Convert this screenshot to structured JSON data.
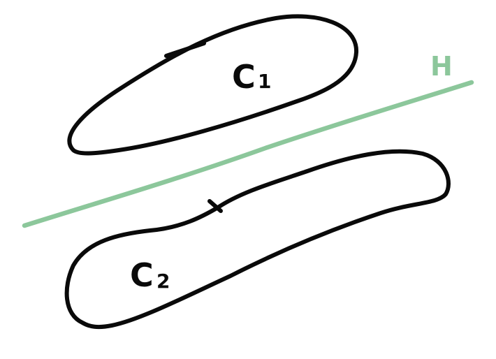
{
  "diagram": {
    "labels": {
      "c1_main": "C",
      "c1_sub": "1",
      "c2_main": "C",
      "c2_sub": "2",
      "hyperplane": "H"
    },
    "colors": {
      "sets": "#0a0a0a",
      "hyperplane": "#8cc79b",
      "background": "#ffffff"
    }
  }
}
